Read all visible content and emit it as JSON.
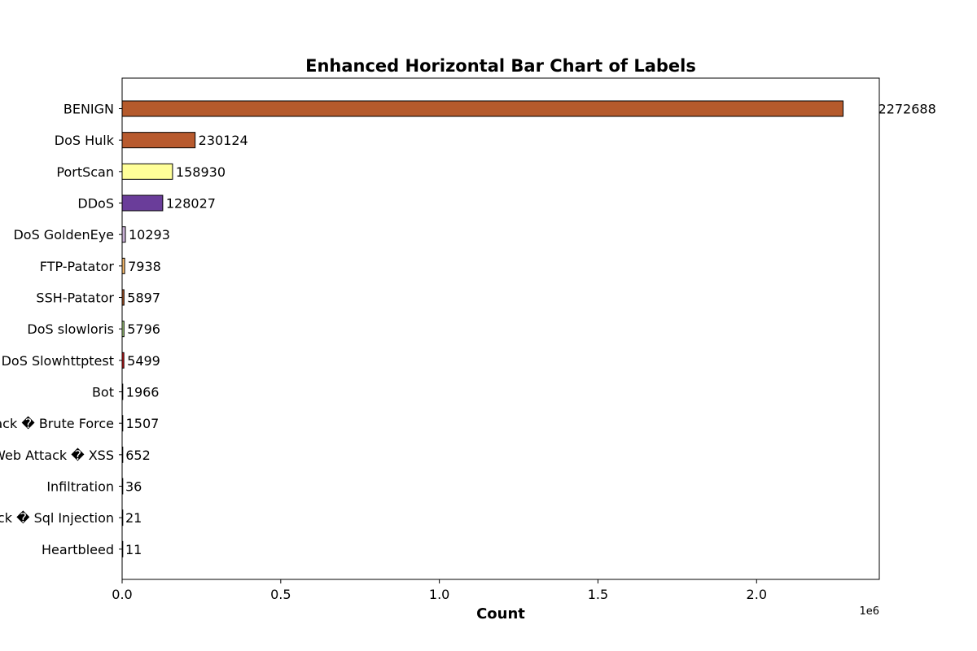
{
  "chart_data": {
    "type": "bar",
    "orientation": "horizontal",
    "title": "Enhanced Horizontal Bar Chart of Labels",
    "xlabel": "Count",
    "ylabel": "",
    "x_offset_label": "1e6",
    "xlim": [
      0,
      2386822
    ],
    "x_ticks": [
      0,
      500000,
      1000000,
      1500000,
      2000000
    ],
    "x_tick_labels": [
      "0.0",
      "0.5",
      "1.0",
      "1.5",
      "2.0"
    ],
    "grid": false,
    "legend": "none",
    "categories": [
      "BENIGN",
      "DoS Hulk",
      "PortScan",
      "DDoS",
      "DoS GoldenEye",
      "FTP-Patator",
      "SSH-Patator",
      "DoS slowloris",
      "DoS Slowhttptest",
      "Bot",
      "Web Attack � Brute Force",
      "Web Attack � XSS",
      "Infiltration",
      "Web Attack � Sql Injection",
      "Heartbleed"
    ],
    "values": [
      2272688,
      230124,
      158930,
      128027,
      10293,
      7938,
      5897,
      5796,
      5499,
      1966,
      1507,
      652,
      36,
      21,
      11
    ],
    "value_labels": [
      "2272688",
      "230124",
      "158930",
      "128027",
      "10293",
      "7938",
      "5897",
      "5796",
      "5499",
      "1966",
      "1507",
      "652",
      "36",
      "21",
      "11"
    ],
    "colors": [
      "#b55a2c",
      "#b85a2e",
      "#ffff99",
      "#6a3d9a",
      "#cab2d6",
      "#fdbf6f",
      "#b15928",
      "#b2df8a",
      "#e31a1c",
      "#1f78b4",
      "#ff7f00",
      "#33a02c",
      "#a6cee3",
      "#fb9a99",
      "#6a3d9a"
    ]
  }
}
